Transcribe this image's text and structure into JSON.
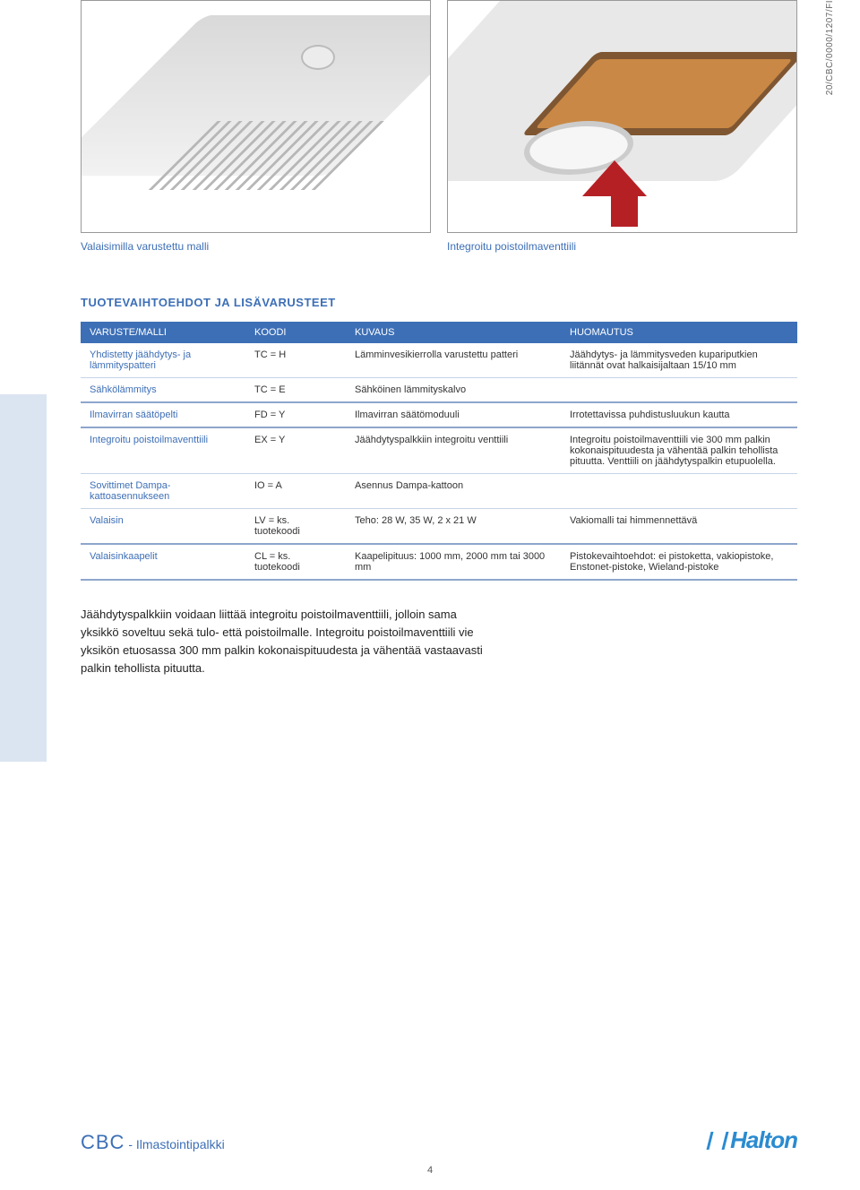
{
  "sidecode": "20/CBC/0000/1207/FI",
  "captions": {
    "left": "Valaisimilla varustettu malli",
    "right": "Integroitu poistoilmaventtiili"
  },
  "section_title": "TUOTEVAIHTOEHDOT JA LISÄVARUSTEET",
  "table": {
    "headers": [
      "VARUSTE/MALLI",
      "KOODI",
      "KUVAUS",
      "HUOMAUTUS"
    ],
    "rows": [
      {
        "item": "Yhdistetty jäähdytys- ja lämmityspatteri",
        "code": "TC = H",
        "desc": "Lämminvesikierrolla varustettu patteri",
        "note": "Jäähdytys- ja lämmitysveden kupariputkien liitännät ovat halkaisijaltaan 15/10 mm",
        "group_end": false
      },
      {
        "item": "Sähkölämmitys",
        "code": "TC = E",
        "desc": "Sähköinen lämmityskalvo",
        "note": "",
        "group_end": true
      },
      {
        "item": "Ilmavirran säätöpelti",
        "code": "FD = Y",
        "desc": "Ilmavirran säätömoduuli",
        "note": "Irrotettavissa puhdistusluukun kautta",
        "group_end": true
      },
      {
        "item": "Integroitu poistoilmaventtiili",
        "code": "EX = Y",
        "desc": "Jäähdytyspalkkiin integroitu venttiili",
        "note": "Integroitu poistoilmaventtiili vie 300 mm palkin kokonaispituudesta ja vähentää palkin tehollista pituutta. Venttiili on jäähdytyspalkin etupuolella.",
        "group_end": false
      },
      {
        "item": "Sovittimet Dampa-kattoasennukseen",
        "code": "IO = A",
        "desc": "Asennus Dampa-kattoon",
        "note": "",
        "group_end": false
      },
      {
        "item": "Valaisin",
        "code": "LV = ks. tuotekoodi",
        "desc": "Teho: 28 W, 35 W, 2 x 21 W",
        "note": "Vakiomalli tai himmennettävä",
        "group_end": true
      },
      {
        "item": "Valaisinkaapelit",
        "code": "CL = ks. tuotekoodi",
        "desc": "Kaapelipituus: 1000 mm, 2000 mm tai 3000 mm",
        "note": "Pistokevaihtoehdot: ei pistoketta, vakiopistoke, Enstonet-pistoke, Wieland-pistoke",
        "group_end": true
      }
    ]
  },
  "bodytext": "Jäähdytyspalkkiin voidaan liittää integroitu poistoilmaventtiili, jolloin sama yksikkö soveltuu sekä tulo- että poistoilmalle. Integroitu poistoilmaventtiili vie yksikön etuosassa 300 mm palkin kokonaispituudesta ja vähentää vastaavasti palkin tehollista pituutta.",
  "footer": {
    "code": "CBC",
    "sub": " - Ilmastointipalkki",
    "brand": "Halton"
  },
  "pagenum": "4",
  "colors": {
    "blue": "#3d6fb6",
    "lightblue_stripe": "#dbe4f1",
    "row_border": "#c7d3e8",
    "group_border": "#8ea6cc",
    "arrow": "#b52025",
    "logo": "#2a8bd0"
  }
}
